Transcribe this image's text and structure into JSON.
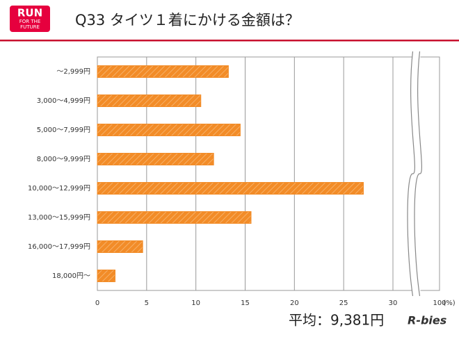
{
  "logo": [
    "RUN",
    "FOR THE",
    "FUTURE"
  ],
  "brand": "R-bies",
  "chart_data": {
    "type": "barh",
    "title": "Q33 タイツ１着にかける金額は？",
    "categories": [
      "～2,999円",
      "3,000～4,999円",
      "5,000～7,999円",
      "8,000～9,999円",
      "10,000～12,999円",
      "13,000～15,999円",
      "16,000～17,999円",
      "18,000円～"
    ],
    "values": [
      13.3,
      10.5,
      14.5,
      11.8,
      27.0,
      15.6,
      4.6,
      1.8
    ],
    "color": "#f28c28",
    "xlim": [
      0,
      100
    ],
    "xticks": [
      0,
      5,
      10,
      15,
      20,
      25,
      30,
      100
    ],
    "x_unit": "(%)",
    "axis_break": true,
    "grid": true,
    "annotation": "平均：9,381円"
  }
}
